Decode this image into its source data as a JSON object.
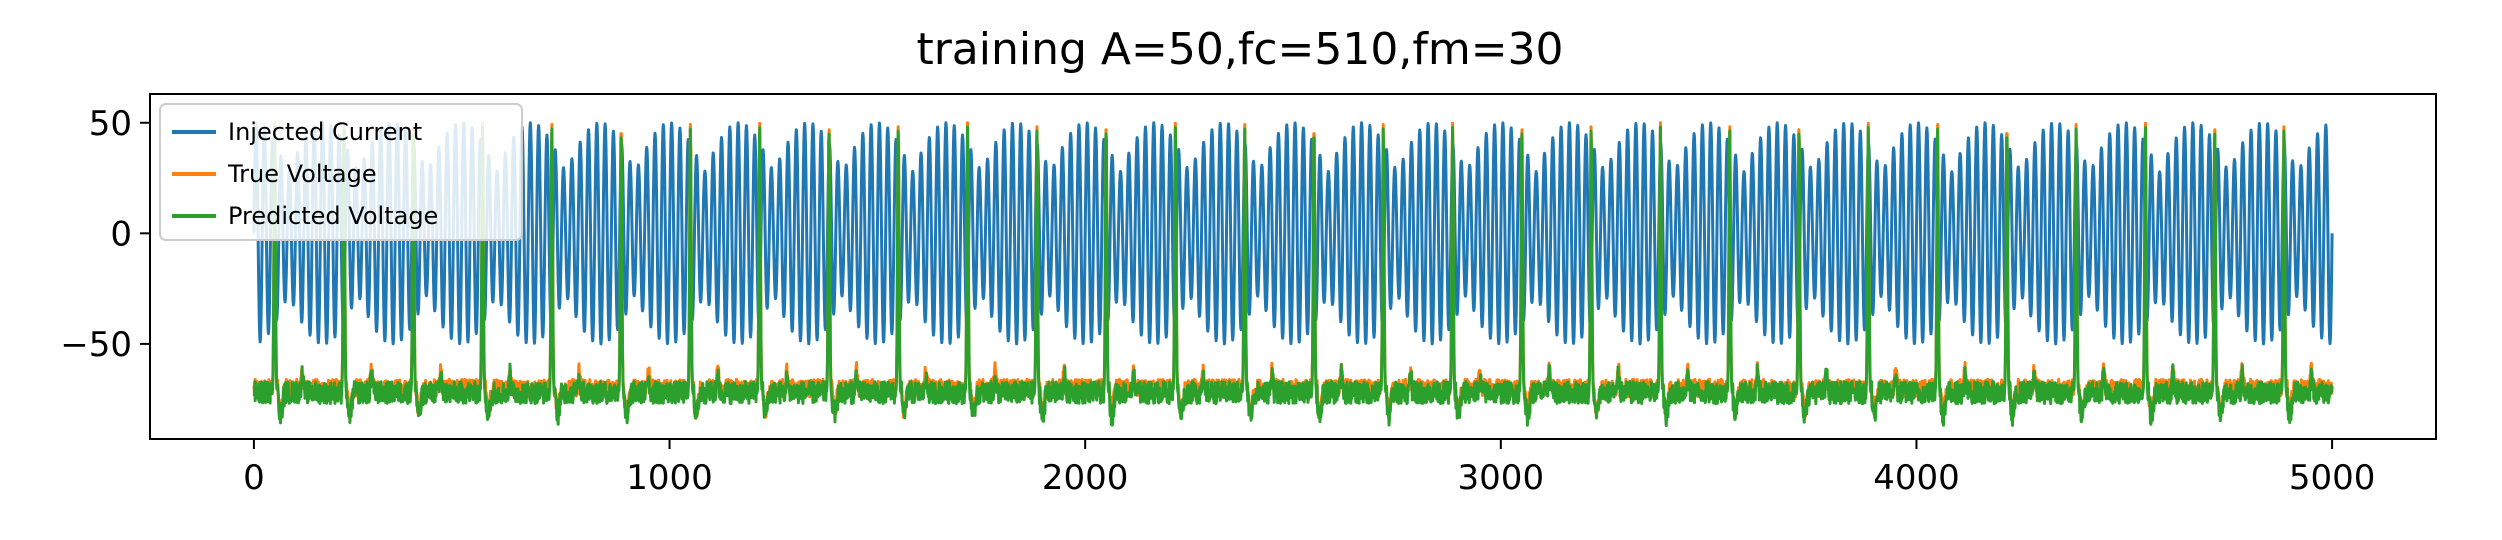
{
  "chart_data": {
    "type": "line",
    "title": "training A=50,fc=510,fm=30",
    "xlabel": "",
    "ylabel": "",
    "xlim": [
      -250,
      5250
    ],
    "ylim": [
      -93,
      63
    ],
    "xticks": [
      0,
      1000,
      2000,
      3000,
      4000,
      5000
    ],
    "xtick_labels": [
      "0",
      "1000",
      "2000",
      "3000",
      "4000",
      "5000"
    ],
    "yticks": [
      50,
      0,
      -50
    ],
    "ytick_labels": [
      "50",
      "0",
      "−50"
    ],
    "grid": false,
    "legend_position": "top-left",
    "series": [
      {
        "name": "Injected Current",
        "color": "#1f77b4",
        "description_params": {
          "amplitude": 50,
          "carrier_period": 20,
          "envelope_period": 166.7
        },
        "x_range": [
          0,
          5000
        ]
      },
      {
        "name": "True Voltage",
        "color": "#ff7f0e",
        "baseline": -70,
        "spike_peak": 50,
        "spike_period": 166.7,
        "x_range": [
          0,
          5000
        ]
      },
      {
        "name": "Predicted Voltage",
        "color": "#2ca02c",
        "baseline": -72,
        "spike_peak": 48,
        "spike_period": 166.7,
        "x_range": [
          0,
          5000
        ]
      }
    ]
  }
}
